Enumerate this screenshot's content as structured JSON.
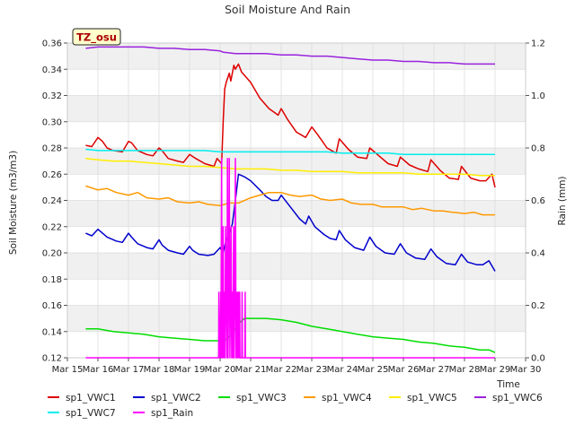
{
  "chart_data": {
    "type": "line",
    "title": "Soil Moisture And Rain",
    "site_label": "TZ_osu",
    "xlabel": "Time",
    "ylabel": "Soil Moisture (m3/m3)",
    "y2label": "Rain (mm)",
    "xlim": [
      15,
      30
    ],
    "ylim": [
      0.12,
      0.36
    ],
    "y2lim": [
      0.0,
      1.2
    ],
    "x_ticks": [
      {
        "v": 15,
        "label": "Mar 15"
      },
      {
        "v": 16,
        "label": "Mar 16"
      },
      {
        "v": 17,
        "label": "Mar 17"
      },
      {
        "v": 18,
        "label": "Mar 18"
      },
      {
        "v": 19,
        "label": "Mar 19"
      },
      {
        "v": 20,
        "label": "Mar 20"
      },
      {
        "v": 21,
        "label": "Mar 21"
      },
      {
        "v": 22,
        "label": "Mar 22"
      },
      {
        "v": 23,
        "label": "Mar 23"
      },
      {
        "v": 24,
        "label": "Mar 24"
      },
      {
        "v": 25,
        "label": "Mar 25"
      },
      {
        "v": 26,
        "label": "Mar 26"
      },
      {
        "v": 27,
        "label": "Mar 27"
      },
      {
        "v": 28,
        "label": "Mar 28"
      },
      {
        "v": 29,
        "label": "Mar 29"
      },
      {
        "v": 30,
        "label": "Mar 30"
      }
    ],
    "y_ticks": [
      {
        "v": 0.12,
        "label": "0.12"
      },
      {
        "v": 0.14,
        "label": "0.14"
      },
      {
        "v": 0.16,
        "label": "0.16"
      },
      {
        "v": 0.18,
        "label": "0.18"
      },
      {
        "v": 0.2,
        "label": "0.20"
      },
      {
        "v": 0.22,
        "label": "0.22"
      },
      {
        "v": 0.24,
        "label": "0.24"
      },
      {
        "v": 0.26,
        "label": "0.26"
      },
      {
        "v": 0.28,
        "label": "0.28"
      },
      {
        "v": 0.3,
        "label": "0.30"
      },
      {
        "v": 0.32,
        "label": "0.32"
      },
      {
        "v": 0.34,
        "label": "0.34"
      },
      {
        "v": 0.36,
        "label": "0.36"
      }
    ],
    "y2_ticks": [
      {
        "v": 0.0,
        "label": "0.0"
      },
      {
        "v": 0.2,
        "label": "0.2"
      },
      {
        "v": 0.4,
        "label": "0.4"
      },
      {
        "v": 0.6,
        "label": "0.6"
      },
      {
        "v": 0.8,
        "label": "0.8"
      },
      {
        "v": 1.0,
        "label": "1.0"
      },
      {
        "v": 1.2,
        "label": "1.2"
      }
    ],
    "grid": true,
    "legend_position": "bottom",
    "series": [
      {
        "name": "sp1_VWC1",
        "color": "#dd0000",
        "axis": "left",
        "x": [
          15.6,
          15.8,
          16.0,
          16.15,
          16.3,
          16.5,
          16.8,
          17.0,
          17.1,
          17.3,
          17.6,
          17.8,
          18.0,
          18.1,
          18.3,
          18.6,
          18.8,
          19.0,
          19.2,
          19.5,
          19.8,
          19.9,
          20.05,
          20.1,
          20.15,
          20.2,
          20.3,
          20.35,
          20.45,
          20.5,
          20.6,
          20.7,
          21.0,
          21.3,
          21.6,
          21.9,
          22.0,
          22.2,
          22.5,
          22.8,
          23.0,
          23.2,
          23.5,
          23.8,
          23.9,
          24.2,
          24.5,
          24.8,
          24.9,
          25.2,
          25.5,
          25.8,
          25.9,
          26.2,
          26.5,
          26.8,
          26.9,
          27.2,
          27.5,
          27.8,
          27.9,
          28.2,
          28.5,
          28.7,
          28.9,
          29.0
        ],
        "y": [
          0.282,
          0.281,
          0.288,
          0.285,
          0.28,
          0.278,
          0.277,
          0.285,
          0.284,
          0.278,
          0.275,
          0.274,
          0.28,
          0.278,
          0.272,
          0.27,
          0.269,
          0.275,
          0.272,
          0.268,
          0.266,
          0.272,
          0.268,
          0.3,
          0.325,
          0.33,
          0.337,
          0.331,
          0.343,
          0.34,
          0.344,
          0.338,
          0.33,
          0.318,
          0.31,
          0.305,
          0.31,
          0.302,
          0.292,
          0.288,
          0.296,
          0.29,
          0.28,
          0.276,
          0.287,
          0.279,
          0.273,
          0.272,
          0.28,
          0.274,
          0.268,
          0.266,
          0.273,
          0.267,
          0.264,
          0.262,
          0.271,
          0.263,
          0.257,
          0.256,
          0.266,
          0.257,
          0.255,
          0.255,
          0.26,
          0.25
        ]
      },
      {
        "name": "sp1_VWC2",
        "color": "#0000cc",
        "axis": "left",
        "x": [
          15.6,
          15.8,
          16.0,
          16.1,
          16.3,
          16.6,
          16.8,
          17.0,
          17.1,
          17.3,
          17.6,
          17.8,
          18.0,
          18.1,
          18.3,
          18.6,
          18.8,
          19.0,
          19.1,
          19.3,
          19.6,
          19.8,
          20.0,
          20.1,
          20.2,
          20.3,
          20.4,
          20.5,
          20.6,
          20.8,
          21.0,
          21.3,
          21.5,
          21.7,
          21.9,
          22.0,
          22.2,
          22.4,
          22.6,
          22.8,
          22.9,
          23.1,
          23.4,
          23.6,
          23.8,
          23.9,
          24.1,
          24.4,
          24.7,
          24.9,
          25.1,
          25.4,
          25.7,
          25.9,
          26.1,
          26.4,
          26.7,
          26.9,
          27.1,
          27.4,
          27.7,
          27.9,
          28.1,
          28.4,
          28.6,
          28.8,
          28.9,
          29.0
        ],
        "y": [
          0.215,
          0.213,
          0.218,
          0.216,
          0.212,
          0.209,
          0.208,
          0.215,
          0.212,
          0.207,
          0.204,
          0.203,
          0.21,
          0.206,
          0.202,
          0.2,
          0.199,
          0.205,
          0.202,
          0.199,
          0.198,
          0.199,
          0.204,
          0.2,
          0.21,
          0.215,
          0.222,
          0.24,
          0.26,
          0.258,
          0.255,
          0.248,
          0.243,
          0.24,
          0.24,
          0.244,
          0.238,
          0.232,
          0.226,
          0.222,
          0.228,
          0.22,
          0.214,
          0.211,
          0.21,
          0.217,
          0.21,
          0.204,
          0.202,
          0.212,
          0.205,
          0.2,
          0.199,
          0.207,
          0.2,
          0.196,
          0.195,
          0.203,
          0.197,
          0.192,
          0.191,
          0.199,
          0.193,
          0.191,
          0.191,
          0.194,
          0.19,
          0.186
        ]
      },
      {
        "name": "sp1_VWC3",
        "color": "#00dd00",
        "axis": "left",
        "x": [
          15.6,
          16.0,
          16.5,
          17.0,
          17.5,
          18.0,
          18.5,
          19.0,
          19.5,
          20.0,
          20.2,
          20.4,
          20.6,
          20.8,
          21.0,
          21.5,
          22.0,
          22.5,
          23.0,
          23.5,
          24.0,
          24.5,
          25.0,
          25.5,
          26.0,
          26.5,
          27.0,
          27.5,
          28.0,
          28.5,
          28.8,
          29.0
        ],
        "y": [
          0.142,
          0.142,
          0.14,
          0.139,
          0.138,
          0.136,
          0.135,
          0.134,
          0.133,
          0.133,
          0.134,
          0.138,
          0.146,
          0.15,
          0.15,
          0.15,
          0.149,
          0.147,
          0.144,
          0.142,
          0.14,
          0.138,
          0.136,
          0.135,
          0.134,
          0.132,
          0.131,
          0.129,
          0.128,
          0.126,
          0.126,
          0.124
        ]
      },
      {
        "name": "sp1_VWC4",
        "color": "#ff9900",
        "axis": "left",
        "x": [
          15.6,
          16.0,
          16.3,
          16.6,
          17.0,
          17.3,
          17.6,
          18.0,
          18.3,
          18.6,
          19.0,
          19.3,
          19.6,
          20.0,
          20.3,
          20.6,
          21.0,
          21.3,
          21.6,
          22.0,
          22.3,
          22.6,
          23.0,
          23.3,
          23.6,
          24.0,
          24.3,
          24.6,
          25.0,
          25.3,
          25.6,
          26.0,
          26.3,
          26.6,
          27.0,
          27.3,
          27.6,
          28.0,
          28.3,
          28.6,
          29.0
        ],
        "y": [
          0.251,
          0.248,
          0.249,
          0.246,
          0.244,
          0.246,
          0.242,
          0.241,
          0.242,
          0.239,
          0.238,
          0.239,
          0.237,
          0.236,
          0.238,
          0.238,
          0.242,
          0.244,
          0.246,
          0.246,
          0.244,
          0.243,
          0.244,
          0.241,
          0.24,
          0.241,
          0.238,
          0.237,
          0.237,
          0.235,
          0.235,
          0.235,
          0.233,
          0.234,
          0.232,
          0.232,
          0.231,
          0.23,
          0.231,
          0.229,
          0.229
        ]
      },
      {
        "name": "sp1_VWC5",
        "color": "#ffee00",
        "axis": "left",
        "x": [
          15.6,
          16.0,
          16.5,
          17.0,
          17.5,
          18.0,
          18.5,
          19.0,
          19.5,
          20.0,
          20.5,
          21.0,
          21.5,
          22.0,
          22.5,
          23.0,
          23.5,
          24.0,
          24.5,
          25.0,
          25.5,
          26.0,
          26.5,
          27.0,
          27.5,
          28.0,
          28.5,
          29.0
        ],
        "y": [
          0.272,
          0.271,
          0.27,
          0.27,
          0.269,
          0.268,
          0.267,
          0.266,
          0.266,
          0.265,
          0.264,
          0.264,
          0.264,
          0.263,
          0.263,
          0.262,
          0.262,
          0.262,
          0.261,
          0.261,
          0.261,
          0.261,
          0.26,
          0.26,
          0.26,
          0.26,
          0.259,
          0.259
        ]
      },
      {
        "name": "sp1_VWC6",
        "color": "#9922dd",
        "axis": "left",
        "x": [
          15.6,
          16.0,
          16.5,
          17.0,
          17.5,
          18.0,
          18.5,
          19.0,
          19.5,
          20.0,
          20.1,
          20.5,
          21.0,
          21.5,
          22.0,
          22.5,
          23.0,
          23.5,
          24.0,
          24.5,
          25.0,
          25.5,
          26.0,
          26.5,
          27.0,
          27.5,
          28.0,
          28.5,
          29.0
        ],
        "y": [
          0.356,
          0.357,
          0.357,
          0.357,
          0.357,
          0.356,
          0.356,
          0.355,
          0.355,
          0.354,
          0.353,
          0.352,
          0.352,
          0.352,
          0.351,
          0.351,
          0.35,
          0.35,
          0.349,
          0.348,
          0.347,
          0.347,
          0.346,
          0.346,
          0.345,
          0.345,
          0.344,
          0.344,
          0.344
        ]
      },
      {
        "name": "sp1_VWC7",
        "color": "#00eeee",
        "axis": "left",
        "x": [
          15.6,
          16.0,
          16.5,
          17.0,
          17.5,
          18.0,
          18.5,
          19.0,
          19.5,
          20.0,
          20.5,
          21.0,
          21.5,
          22.0,
          22.5,
          23.0,
          23.5,
          24.0,
          24.5,
          25.0,
          25.5,
          26.0,
          26.5,
          27.0,
          27.5,
          28.0,
          28.5,
          29.0
        ],
        "y": [
          0.279,
          0.278,
          0.278,
          0.278,
          0.278,
          0.278,
          0.278,
          0.278,
          0.278,
          0.277,
          0.277,
          0.277,
          0.277,
          0.277,
          0.277,
          0.277,
          0.277,
          0.276,
          0.276,
          0.276,
          0.276,
          0.275,
          0.275,
          0.275,
          0.275,
          0.275,
          0.275,
          0.275
        ]
      },
      {
        "name": "sp1_Rain",
        "color": "#ff00ff",
        "axis": "right",
        "x": [
          15.6,
          19.95,
          19.96,
          19.98,
          20.0,
          20.02,
          20.03,
          20.05,
          20.06,
          20.08,
          20.1,
          20.12,
          20.14,
          20.16,
          20.18,
          20.2,
          20.22,
          20.24,
          20.26,
          20.28,
          20.3,
          20.32,
          20.34,
          20.36,
          20.38,
          20.4,
          20.42,
          20.44,
          20.46,
          20.48,
          20.5,
          20.52,
          20.54,
          20.56,
          20.58,
          20.6,
          20.62,
          20.63,
          20.64,
          20.65,
          20.66,
          20.68,
          20.7,
          20.71,
          20.72,
          20.73,
          20.74,
          20.8,
          20.81,
          20.82,
          20.83,
          20.84,
          29.0
        ],
        "y": [
          0.0,
          0.0,
          0.25,
          0.0,
          0.0,
          0.25,
          0.0,
          0.76,
          0.0,
          0.0,
          0.5,
          0.0,
          0.25,
          0.0,
          0.5,
          0.25,
          0.0,
          0.76,
          0.0,
          0.25,
          0.76,
          0.0,
          0.25,
          0.5,
          0.0,
          0.25,
          0.0,
          0.5,
          0.0,
          0.25,
          0.76,
          0.0,
          0.0,
          0.25,
          0.0,
          0.25,
          0.0,
          0.0,
          0.25,
          0.0,
          0.0,
          0.0,
          0.0,
          0.0,
          0.25,
          0.0,
          0.0,
          0.0,
          0.0,
          0.25,
          0.0,
          0.0,
          0.0
        ]
      }
    ]
  }
}
